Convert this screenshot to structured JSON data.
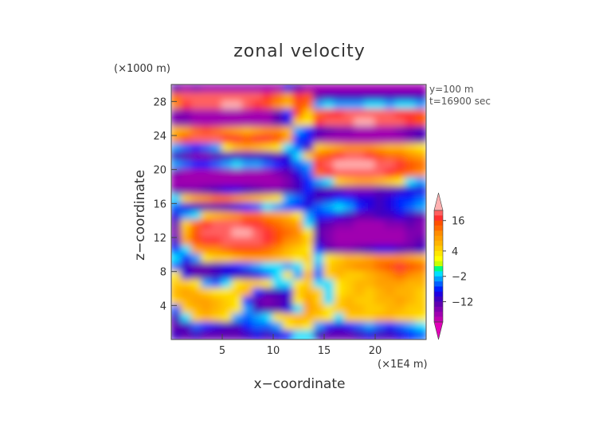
{
  "chart_data": {
    "type": "heatmap",
    "title": "zonal velocity",
    "xlabel": "x−coordinate",
    "ylabel": "z−coordinate",
    "x_unit": "(×1E4 m)",
    "y_unit": "(×1000 m)",
    "annotations": [
      "y=100 m",
      "t=16900 sec"
    ],
    "xlim": [
      0,
      25
    ],
    "ylim": [
      0,
      30
    ],
    "x_ticks": [
      5,
      10,
      15,
      20
    ],
    "y_ticks": [
      4,
      8,
      12,
      16,
      20,
      24,
      28
    ],
    "colorbar": {
      "tick_labels": [
        "16",
        "4",
        "−2",
        "−12"
      ],
      "tick_values": [
        16,
        4,
        -2,
        -12
      ],
      "levels": [
        20,
        18,
        16,
        14,
        12,
        10,
        8,
        6,
        4,
        2,
        1,
        0,
        -1,
        -2,
        -4,
        -6,
        -8,
        -10,
        -12,
        -14,
        -16,
        -18,
        -20
      ],
      "colors": [
        "#ffb0b0",
        "#ff6060",
        "#ff3030",
        "#ff5000",
        "#ff6a00",
        "#ff8c00",
        "#ffa000",
        "#ffb400",
        "#ffcc00",
        "#ffe600",
        "#ffff00",
        "#c8ff00",
        "#00ff80",
        "#00e0ff",
        "#00a0ff",
        "#0060ff",
        "#0020ff",
        "#2000e0",
        "#4000c0",
        "#6000b0",
        "#8000b0",
        "#a000b0",
        "#c000b0",
        "#e000b8"
      ]
    },
    "field": {
      "x_centers": [
        0.5,
        1.5,
        2.5,
        3.5,
        4.5,
        5.5,
        6.5,
        7.5,
        8.5,
        9.5,
        10.5,
        11.5,
        12.5,
        13.5,
        14.5,
        15.5,
        16.5,
        17.5,
        18.5,
        19.5,
        20.5,
        21.5,
        22.5,
        23.5,
        24.5
      ],
      "z_centers": [
        29.5,
        28.5,
        27.5,
        26.5,
        25.5,
        24.5,
        23.5,
        22.5,
        21.5,
        20.5,
        19.5,
        18.5,
        17.5,
        16.5,
        15.5,
        14.5,
        13.5,
        12.5,
        11.5,
        10.5,
        9.5,
        8.5,
        7.5,
        6.5,
        5.5,
        4.5,
        3.5,
        2.5,
        1.5,
        0.5
      ],
      "u": [
        [
          -14,
          -18,
          -16,
          -18,
          -18,
          -18,
          -18,
          -18,
          -18,
          -18,
          -18,
          -10,
          -14,
          -18,
          -18,
          -18,
          -18,
          -18,
          -18,
          -18,
          -18,
          -18,
          -18,
          -18,
          -18
        ],
        [
          12,
          18,
          18,
          18,
          18,
          18,
          18,
          18,
          18,
          16,
          12,
          8,
          16,
          14,
          -14,
          -12,
          -12,
          -12,
          -12,
          -12,
          -12,
          -12,
          -12,
          -12,
          -12
        ],
        [
          10,
          16,
          18,
          18,
          18,
          20,
          20,
          18,
          16,
          14,
          10,
          6,
          14,
          12,
          -4,
          -2,
          -4,
          -4,
          -4,
          -2,
          -2,
          -4,
          -2,
          -2,
          -4
        ],
        [
          -16,
          -16,
          -18,
          -18,
          -18,
          -18,
          -18,
          -18,
          -18,
          -18,
          -14,
          -8,
          14,
          4,
          12,
          16,
          16,
          18,
          18,
          18,
          18,
          18,
          16,
          16,
          14
        ],
        [
          -16,
          -16,
          -18,
          -18,
          -18,
          -18,
          -18,
          -18,
          -18,
          -18,
          -14,
          -10,
          4,
          2,
          16,
          18,
          18,
          18,
          20,
          20,
          18,
          18,
          18,
          16,
          14
        ],
        [
          6,
          8,
          12,
          14,
          12,
          10,
          8,
          6,
          8,
          10,
          10,
          6,
          -4,
          -8,
          -12,
          -14,
          -16,
          -16,
          -18,
          -18,
          -18,
          -18,
          -16,
          -14,
          -12
        ],
        [
          10,
          14,
          18,
          18,
          18,
          16,
          16,
          14,
          16,
          16,
          14,
          8,
          -8,
          -8,
          -16,
          -18,
          -18,
          -18,
          -18,
          -18,
          -18,
          -18,
          -18,
          -16,
          -14
        ],
        [
          -4,
          -6,
          -8,
          -6,
          -4,
          2,
          6,
          8,
          6,
          4,
          2,
          -2,
          -6,
          -12,
          4,
          6,
          8,
          10,
          10,
          10,
          8,
          6,
          6,
          4,
          2
        ],
        [
          -12,
          -14,
          -16,
          -16,
          -14,
          -12,
          -12,
          -12,
          -12,
          -12,
          -14,
          -10,
          -2,
          4,
          12,
          14,
          16,
          18,
          18,
          16,
          14,
          12,
          12,
          10,
          8
        ],
        [
          -4,
          -6,
          -8,
          -8,
          -6,
          -4,
          -2,
          -4,
          -4,
          -6,
          -8,
          -10,
          -6,
          -4,
          16,
          18,
          20,
          20,
          20,
          20,
          18,
          18,
          16,
          14,
          12
        ],
        [
          -16,
          -18,
          -18,
          -18,
          -18,
          -18,
          -18,
          -18,
          -18,
          -18,
          -16,
          -14,
          -10,
          -6,
          12,
          16,
          18,
          18,
          18,
          18,
          18,
          16,
          14,
          12,
          10
        ],
        [
          -18,
          -18,
          -18,
          -18,
          -18,
          -18,
          -18,
          -18,
          -18,
          -18,
          -18,
          -16,
          -12,
          -8,
          -4,
          -2,
          4,
          6,
          8,
          8,
          6,
          4,
          2,
          -2,
          -4
        ],
        [
          -16,
          -16,
          -16,
          -14,
          -12,
          -10,
          -10,
          -12,
          -14,
          -16,
          -16,
          -14,
          -12,
          -8,
          -12,
          -14,
          -14,
          -16,
          -16,
          -16,
          -14,
          -14,
          -12,
          -10,
          -10
        ],
        [
          -2,
          4,
          8,
          10,
          12,
          12,
          10,
          8,
          6,
          4,
          2,
          -4,
          -6,
          -10,
          -12,
          -10,
          -8,
          -8,
          -10,
          -10,
          -12,
          -10,
          -8,
          -8,
          -6
        ],
        [
          -6,
          -10,
          -12,
          -14,
          -14,
          -12,
          -10,
          -8,
          -6,
          -2,
          -4,
          -6,
          -8,
          -10,
          -6,
          -4,
          -2,
          -4,
          -8,
          -10,
          -12,
          -10,
          -8,
          -6,
          -4
        ],
        [
          -10,
          -4,
          -2,
          4,
          6,
          8,
          10,
          12,
          12,
          10,
          8,
          6,
          2,
          -4,
          -8,
          -8,
          -10,
          -12,
          -14,
          -14,
          -12,
          -12,
          -10,
          -12,
          -14
        ],
        [
          -14,
          4,
          12,
          16,
          18,
          18,
          18,
          16,
          16,
          14,
          12,
          10,
          8,
          -2,
          -12,
          -14,
          -16,
          -16,
          -18,
          -18,
          -18,
          -16,
          -16,
          -14,
          -16
        ],
        [
          -16,
          6,
          14,
          18,
          18,
          18,
          20,
          20,
          18,
          16,
          14,
          12,
          10,
          2,
          -14,
          -16,
          -18,
          -18,
          -18,
          -18,
          -18,
          -18,
          -18,
          -16,
          -16
        ],
        [
          -12,
          8,
          14,
          16,
          16,
          18,
          18,
          18,
          18,
          16,
          14,
          10,
          8,
          4,
          -12,
          -16,
          -18,
          -18,
          -18,
          -18,
          -18,
          -18,
          -18,
          -16,
          -14
        ],
        [
          -8,
          -2,
          8,
          10,
          10,
          12,
          14,
          14,
          14,
          12,
          10,
          6,
          4,
          2,
          -8,
          -14,
          -16,
          -16,
          -14,
          -12,
          -10,
          -10,
          -12,
          -14,
          -12
        ],
        [
          -2,
          -8,
          -4,
          2,
          4,
          4,
          6,
          8,
          8,
          8,
          6,
          4,
          2,
          4,
          -2,
          2,
          4,
          6,
          6,
          8,
          10,
          10,
          10,
          8,
          6
        ],
        [
          -6,
          -12,
          -14,
          -14,
          -12,
          -10,
          -8,
          -6,
          -4,
          -2,
          -2,
          -4,
          -2,
          2,
          -4,
          4,
          6,
          8,
          10,
          10,
          12,
          14,
          16,
          14,
          12
        ],
        [
          2,
          -10,
          -14,
          -14,
          -12,
          -10,
          -12,
          -12,
          -10,
          -6,
          -2,
          2,
          -4,
          6,
          -6,
          4,
          6,
          4,
          4,
          6,
          8,
          10,
          12,
          10,
          8
        ],
        [
          4,
          4,
          2,
          -4,
          -6,
          -2,
          2,
          4,
          4,
          2,
          -2,
          -2,
          2,
          4,
          -2,
          -2,
          2,
          4,
          6,
          6,
          8,
          8,
          8,
          6,
          6
        ],
        [
          6,
          8,
          6,
          4,
          2,
          2,
          4,
          6,
          -8,
          -12,
          -12,
          -10,
          4,
          6,
          4,
          -2,
          2,
          4,
          6,
          4,
          6,
          8,
          6,
          6,
          4
        ],
        [
          4,
          6,
          8,
          8,
          6,
          4,
          2,
          -8,
          -14,
          -16,
          -14,
          -12,
          2,
          8,
          4,
          -2,
          4,
          6,
          4,
          4,
          6,
          6,
          8,
          6,
          4
        ],
        [
          -6,
          4,
          6,
          8,
          6,
          4,
          2,
          -4,
          -12,
          -14,
          -14,
          -10,
          -2,
          8,
          6,
          2,
          4,
          6,
          6,
          4,
          4,
          6,
          6,
          4,
          4
        ],
        [
          -12,
          -2,
          4,
          6,
          4,
          2,
          -4,
          -6,
          -4,
          -2,
          2,
          4,
          6,
          6,
          4,
          2,
          -2,
          4,
          4,
          4,
          6,
          6,
          4,
          4,
          2
        ],
        [
          -14,
          -12,
          -6,
          -8,
          -10,
          -12,
          -12,
          -8,
          -6,
          -6,
          -4,
          2,
          4,
          2,
          -4,
          -8,
          -10,
          -8,
          -6,
          -4,
          -6,
          -8,
          -6,
          -4,
          -2
        ],
        [
          -12,
          -14,
          -12,
          -14,
          -14,
          -14,
          -14,
          -12,
          -10,
          -12,
          -10,
          -8,
          -2,
          -2,
          -12,
          -14,
          -14,
          -14,
          -12,
          -10,
          -12,
          -12,
          -10,
          -8,
          -6
        ]
      ]
    }
  }
}
